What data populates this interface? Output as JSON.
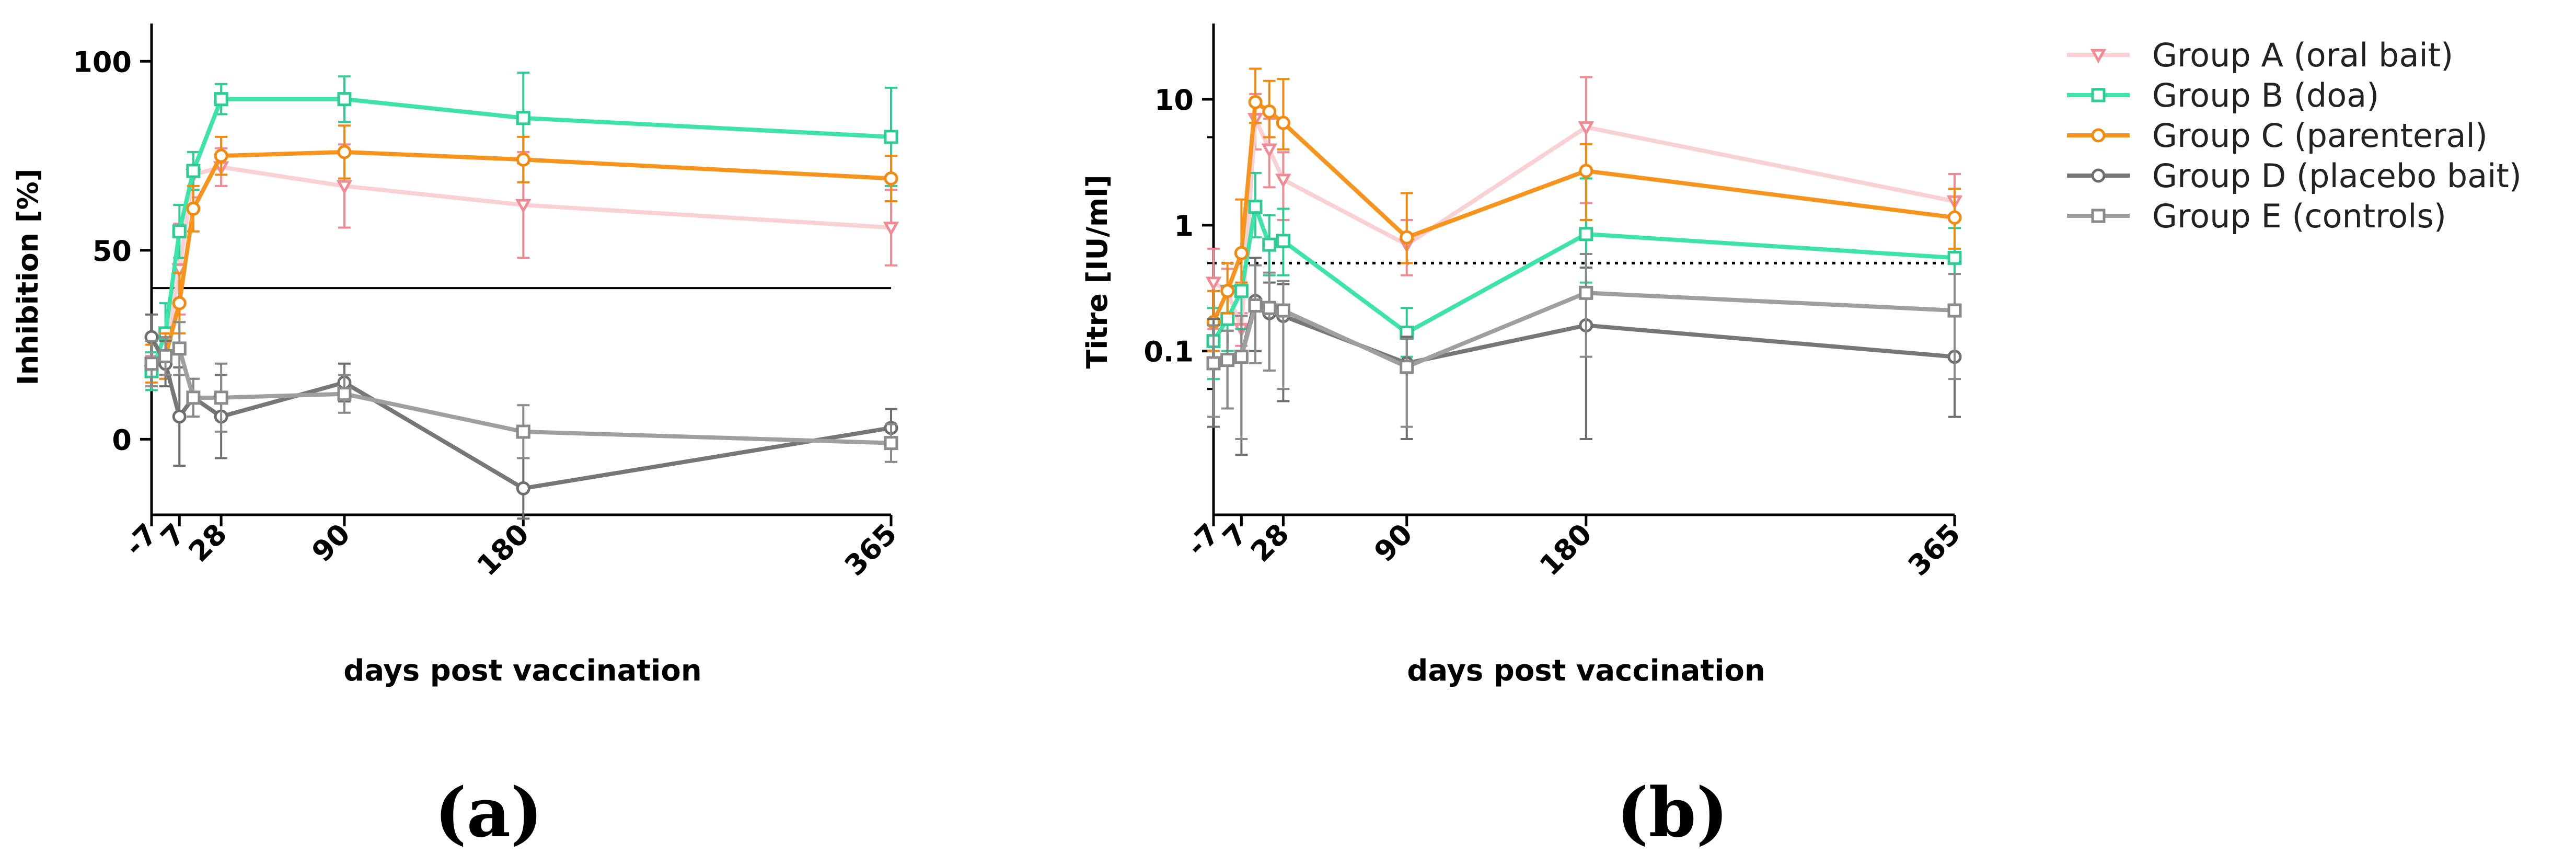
{
  "figure": {
    "legend": [
      {
        "name": "Group A (oral bait)",
        "color": "#f9d0d3",
        "marker_color": "#f08a93",
        "marker": "triangle"
      },
      {
        "name": "Group B (doa)",
        "color": "#3ee3a8",
        "marker_color": "#2ecc94",
        "marker": "square"
      },
      {
        "name": "Group C (parenteral)",
        "color": "#f7941d",
        "marker_color": "#f28a12",
        "marker": "circle"
      },
      {
        "name": "Group D (placebo bait)",
        "color": "#777777",
        "marker_color": "#6e6e6e",
        "marker": "circle"
      },
      {
        "name": "Group E (controls)",
        "color": "#9f9f9f",
        "marker_color": "#8a8a8a",
        "marker": "square"
      }
    ]
  },
  "chart_data": [
    {
      "type": "line",
      "panel_label": "(a)",
      "title": "",
      "xlabel": "days post vaccination",
      "ylabel": "Inhibition [%]",
      "x_ticks": [
        "-7",
        "7",
        "28",
        "90",
        "180",
        "365"
      ],
      "x_tick_values": [
        -7,
        7,
        28,
        90,
        180,
        365
      ],
      "xlim": [
        -7,
        365
      ],
      "ylim": [
        -20,
        110
      ],
      "y_ticks": [
        "0",
        "50",
        "100"
      ],
      "y_tick_values": [
        0,
        50,
        100
      ],
      "y_scale": "linear",
      "reference_line": {
        "value": 40,
        "style": "solid"
      },
      "series": [
        {
          "name": "Group A (oral bait)",
          "x": [
            -7,
            0,
            7,
            14,
            28,
            90,
            180,
            365
          ],
          "y": [
            18,
            22,
            45,
            70,
            72,
            67,
            62,
            56
          ],
          "err": [
            4,
            6,
            12,
            6,
            5,
            11,
            14,
            10
          ]
        },
        {
          "name": "Group B (doa)",
          "x": [
            -7,
            0,
            7,
            14,
            28,
            90,
            180,
            365
          ],
          "y": [
            18,
            28,
            55,
            71,
            90,
            90,
            85,
            80
          ],
          "err": [
            5,
            8,
            7,
            5,
            4,
            6,
            12,
            13
          ]
        },
        {
          "name": "Group C (parenteral)",
          "x": [
            -7,
            0,
            7,
            14,
            28,
            90,
            180,
            365
          ],
          "y": [
            20,
            22,
            36,
            61,
            75,
            76,
            74,
            69
          ],
          "err": [
            5,
            6,
            8,
            6,
            5,
            7,
            6,
            6
          ]
        },
        {
          "name": "Group D (placebo bait)",
          "x": [
            -7,
            0,
            7,
            14,
            28,
            90,
            180,
            365
          ],
          "y": [
            27,
            20,
            6,
            11,
            6,
            15,
            -13,
            3
          ],
          "err": [
            6,
            6,
            13,
            5,
            11,
            5,
            8,
            5
          ]
        },
        {
          "name": "Group E (controls)",
          "x": [
            -7,
            0,
            7,
            14,
            28,
            90,
            180,
            365
          ],
          "y": [
            20,
            22,
            24,
            11,
            11,
            12,
            2,
            -1
          ],
          "err": [
            6,
            5,
            7,
            5,
            9,
            5,
            7,
            5
          ]
        }
      ]
    },
    {
      "type": "line",
      "panel_label": "(b)",
      "title": "",
      "xlabel": "days post vaccination",
      "ylabel": "Titre [IU/ml]",
      "x_ticks": [
        "-7",
        "7",
        "28",
        "90",
        "180",
        "365"
      ],
      "x_tick_values": [
        -7,
        7,
        28,
        90,
        180,
        365
      ],
      "xlim": [
        -7,
        365
      ],
      "ylim": [
        0.005,
        40
      ],
      "y_ticks": [
        "0.1",
        "1",
        "10"
      ],
      "y_tick_values": [
        0.1,
        1,
        10
      ],
      "y_scale": "log",
      "reference_line": {
        "value": 0.5,
        "style": "dotted"
      },
      "series": [
        {
          "name": "Group A (oral bait)",
          "x": [
            -7,
            0,
            7,
            14,
            21,
            28,
            90,
            180,
            365
          ],
          "y": [
            0.35,
            0.3,
            0.15,
            7,
            4,
            2.3,
            0.7,
            6,
            1.55
          ],
          "err_lo": [
            0.2,
            0.1,
            0.04,
            3,
            2,
            1.2,
            0.3,
            4.5,
            0.4
          ],
          "err_hi": [
            0.3,
            0.15,
            0.05,
            4,
            3,
            1.5,
            0.4,
            9,
            1
          ]
        },
        {
          "name": "Group B (doa)",
          "x": [
            -7,
            0,
            7,
            14,
            21,
            28,
            90,
            180,
            365
          ],
          "y": [
            0.12,
            0.18,
            0.3,
            1.4,
            0.7,
            0.75,
            0.14,
            0.85,
            0.55
          ],
          "err_lo": [
            0.06,
            0.08,
            0.15,
            0.6,
            0.3,
            0.35,
            0.05,
            0.5,
            0.35
          ],
          "err_hi": [
            0.1,
            0.15,
            0.3,
            1.2,
            0.5,
            0.6,
            0.08,
            1.5,
            0.4
          ]
        },
        {
          "name": "Group C (parenteral)",
          "x": [
            -7,
            0,
            7,
            14,
            21,
            28,
            90,
            180,
            365
          ],
          "y": [
            0.17,
            0.3,
            0.6,
            9.5,
            8,
            6.5,
            0.8,
            2.7,
            1.15
          ],
          "err_lo": [
            0.07,
            0.1,
            0.25,
            3,
            3,
            2.5,
            0.3,
            1.6,
            0.5
          ],
          "err_hi": [
            0.13,
            0.2,
            1,
            8,
            6,
            8,
            1,
            1.7,
            0.8
          ]
        },
        {
          "name": "Group D (placebo bait)",
          "x": [
            -7,
            0,
            7,
            14,
            21,
            28,
            90,
            180,
            365
          ],
          "y": [
            0.08,
            0.085,
            0.09,
            0.25,
            0.2,
            0.19,
            0.08,
            0.16,
            0.09
          ],
          "err_lo": [
            0.055,
            0.05,
            0.075,
            0.15,
            0.13,
            0.15,
            0.06,
            0.14,
            0.06
          ],
          "err_hi": [
            0.1,
            0.06,
            0.1,
            0.3,
            0.15,
            0.15,
            0.05,
            0.3,
            0.1
          ]
        },
        {
          "name": "Group E (controls)",
          "x": [
            -7,
            0,
            7,
            14,
            21,
            28,
            90,
            180,
            365
          ],
          "y": [
            0.08,
            0.085,
            0.09,
            0.23,
            0.22,
            0.21,
            0.075,
            0.29,
            0.21
          ],
          "err_lo": [
            0.05,
            0.05,
            0.07,
            0.15,
            0.15,
            0.16,
            0.05,
            0.2,
            0.15
          ],
          "err_hi": [
            0.08,
            0.06,
            0.1,
            0.25,
            0.2,
            0.15,
            0.05,
            0.3,
            0.2
          ]
        }
      ]
    }
  ]
}
